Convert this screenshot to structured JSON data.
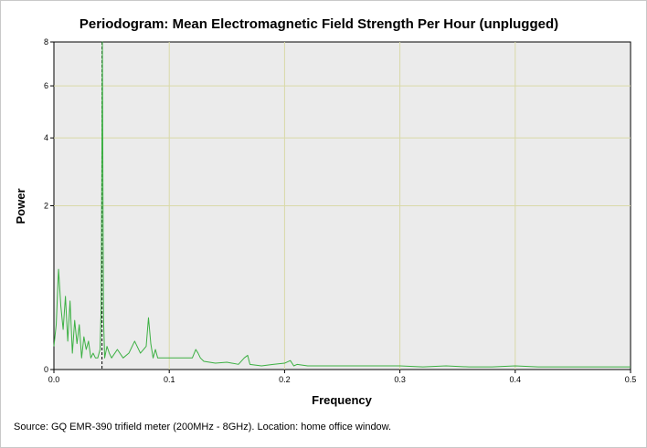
{
  "chart_data": {
    "type": "line",
    "title": "Periodogram: Mean Electromagnetic Field Strength Per Hour (unplugged)",
    "xlabel": "Frequency",
    "ylabel": "Power",
    "xlim": [
      0,
      0.5
    ],
    "ylim": [
      0,
      8
    ],
    "y_scale": "sqrt",
    "x_ticks": [
      0.0,
      0.1,
      0.2,
      0.3,
      0.4,
      0.5
    ],
    "x_tick_labels": [
      "0.0",
      "0.1",
      "0.2",
      "0.3",
      "0.4",
      "0.5"
    ],
    "y_ticks": [
      0,
      2,
      4,
      6,
      8
    ],
    "y_tick_labels": [
      "0",
      "2",
      "4",
      "6",
      "8"
    ],
    "grid": true,
    "plot_background": "#ebebeb",
    "grid_color": "#d9d9a8",
    "series": [
      {
        "color": "#3cb043",
        "x": [
          0.0,
          0.002,
          0.004,
          0.006,
          0.008,
          0.01,
          0.012,
          0.014,
          0.016,
          0.018,
          0.02,
          0.022,
          0.024,
          0.026,
          0.028,
          0.03,
          0.032,
          0.034,
          0.036,
          0.038,
          0.04,
          0.041,
          0.042,
          0.043,
          0.044,
          0.046,
          0.048,
          0.05,
          0.055,
          0.06,
          0.065,
          0.07,
          0.075,
          0.08,
          0.082,
          0.084,
          0.086,
          0.088,
          0.09,
          0.095,
          0.1,
          0.105,
          0.11,
          0.115,
          0.12,
          0.123,
          0.125,
          0.127,
          0.13,
          0.14,
          0.15,
          0.16,
          0.165,
          0.168,
          0.17,
          0.18,
          0.19,
          0.2,
          0.205,
          0.208,
          0.211,
          0.22,
          0.24,
          0.26,
          0.28,
          0.3,
          0.32,
          0.34,
          0.36,
          0.38,
          0.4,
          0.42,
          0.44,
          0.46,
          0.48,
          0.5
        ],
        "y": [
          0.04,
          0.15,
          0.75,
          0.3,
          0.12,
          0.4,
          0.06,
          0.35,
          0.02,
          0.18,
          0.05,
          0.15,
          0.01,
          0.08,
          0.03,
          0.06,
          0.01,
          0.02,
          0.01,
          0.01,
          0.03,
          0.3,
          8.0,
          0.2,
          0.01,
          0.04,
          0.02,
          0.01,
          0.03,
          0.01,
          0.02,
          0.06,
          0.02,
          0.04,
          0.2,
          0.05,
          0.01,
          0.03,
          0.01,
          0.01,
          0.01,
          0.01,
          0.01,
          0.01,
          0.01,
          0.03,
          0.02,
          0.01,
          0.005,
          0.003,
          0.004,
          0.002,
          0.01,
          0.015,
          0.002,
          0.001,
          0.002,
          0.003,
          0.006,
          0.001,
          0.002,
          0.001,
          0.001,
          0.001,
          0.001,
          0.001,
          0.0005,
          0.001,
          0.0005,
          0.0005,
          0.001,
          0.0005,
          0.0005,
          0.0005,
          0.0005,
          0.0005
        ]
      }
    ],
    "reference_line": {
      "x": 0.0417,
      "style": "dashed",
      "color": "#000000"
    }
  },
  "footer": {
    "source": "Source: GQ EMR-390 trifield meter (200MHz - 8GHz). Location: home office window."
  }
}
